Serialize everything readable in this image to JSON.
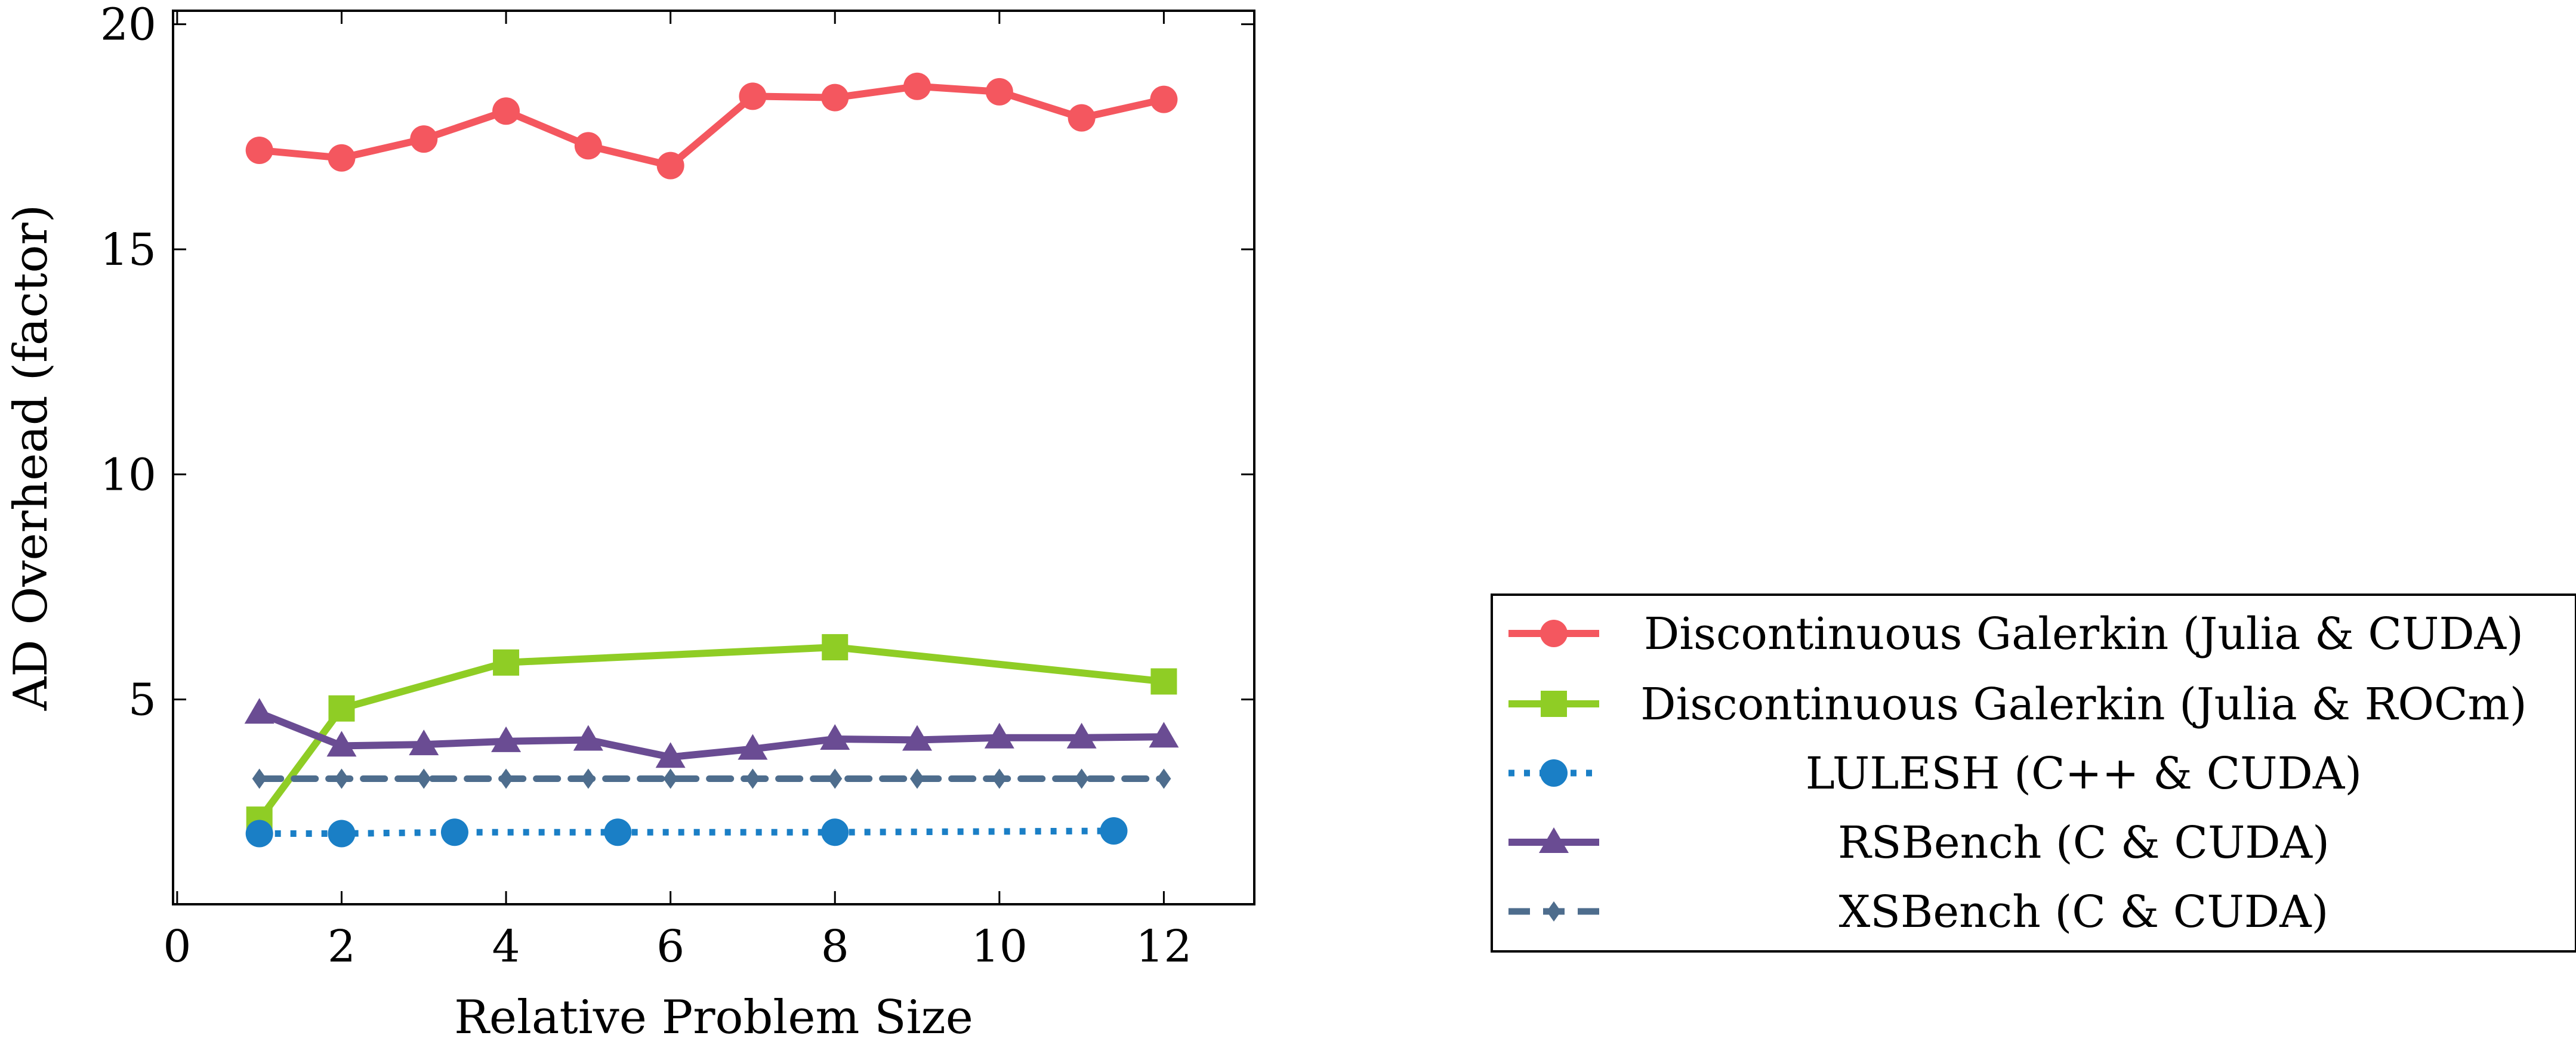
{
  "chart_data": {
    "type": "line",
    "title": "",
    "xlabel": "Relative Problem Size",
    "ylabel": "AD Overhead (factor)",
    "xlim": [
      -0.05,
      13.1
    ],
    "ylim": [
      0.45,
      20.3
    ],
    "xticks": [
      0,
      2,
      4,
      6,
      8,
      10,
      12
    ],
    "xtick_labels": [
      "0",
      "2",
      "4",
      "6",
      "8",
      "10",
      "12"
    ],
    "yticks": [
      5,
      10,
      15,
      20
    ],
    "ytick_labels": [
      "5",
      "10",
      "15",
      "20"
    ],
    "grid": false,
    "legend_position": "outside-right-bottom",
    "series": [
      {
        "name": "Discontinuous Galerkin (Julia & CUDA)",
        "color": "#f4575f",
        "marker": "circle",
        "line_style": "solid",
        "x": [
          1,
          2,
          3,
          4,
          5,
          6,
          7,
          8,
          9,
          10,
          11,
          12
        ],
        "y": [
          17.2,
          17.03,
          17.45,
          18.07,
          17.3,
          16.86,
          18.4,
          18.37,
          18.62,
          18.5,
          17.92,
          18.33
        ]
      },
      {
        "name": "Discontinuous Galerkin (Julia & ROCm)",
        "color": "#8fcd25",
        "marker": "square",
        "line_style": "solid",
        "x": [
          1,
          2,
          4,
          8,
          12
        ],
        "y": [
          2.33,
          4.8,
          5.82,
          6.16,
          5.4
        ]
      },
      {
        "name": "LULESH (C++ & CUDA)",
        "color": "#1a7fc6",
        "marker": "circle",
        "line_style": "dotted",
        "x": [
          1,
          2,
          3.375,
          5.359,
          8,
          11.391
        ],
        "y": [
          2.02,
          2.02,
          2.05,
          2.05,
          2.05,
          2.08
        ]
      },
      {
        "name": "RSBench (C & CUDA)",
        "color": "#6a4c93",
        "marker": "triangle",
        "line_style": "solid",
        "x": [
          1,
          2,
          3,
          4,
          5,
          6,
          7,
          8,
          9,
          10,
          11,
          12
        ],
        "y": [
          4.7,
          3.97,
          4.0,
          4.07,
          4.1,
          3.72,
          3.9,
          4.12,
          4.1,
          4.15,
          4.15,
          4.17
        ]
      },
      {
        "name": "XSBench (C & CUDA)",
        "color": "#4e6d8d",
        "marker": "diamond",
        "line_style": "dashed",
        "x": [
          1,
          2,
          3,
          4,
          5,
          6,
          7,
          8,
          9,
          10,
          11,
          12
        ],
        "y": [
          3.24,
          3.24,
          3.24,
          3.24,
          3.24,
          3.24,
          3.24,
          3.24,
          3.24,
          3.24,
          3.24,
          3.24
        ]
      }
    ]
  }
}
